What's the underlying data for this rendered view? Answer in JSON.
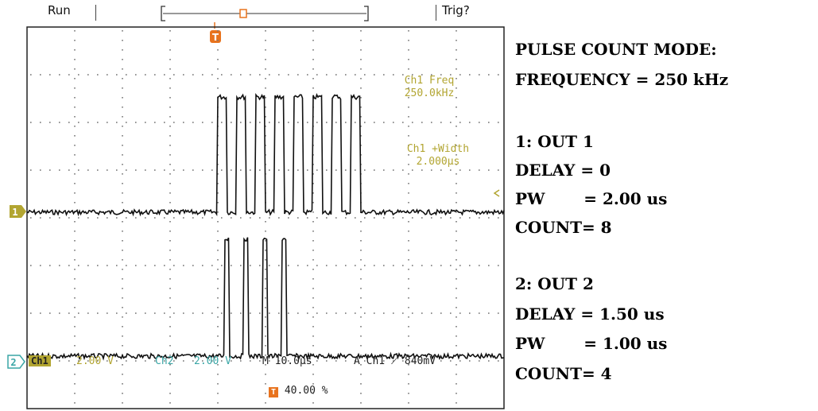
{
  "scope": {
    "status_label": "Run",
    "trigger_label": "Trig?",
    "trigger_marker": "T",
    "ch1_marker": "1",
    "ch2_marker": "2",
    "measurements": [
      {
        "label": "Ch1 Freq",
        "value": "250.0kHz"
      },
      {
        "label": "Ch1 +Width",
        "value": "2.000µs"
      }
    ],
    "bottom_readout": {
      "ch1_tag": "Ch1",
      "ch1_scale": "2.00 V",
      "ch2_tag": "Ch2",
      "ch2_scale": "2.00 V",
      "timebase": "M 10.0µs",
      "trigger": "A  Ch1  ⟋  840mV",
      "trigger_position": "40.00 %"
    },
    "colors": {
      "ch1": "#b2a531",
      "ch2": "#3aa6a6",
      "trigger": "#e8731e"
    }
  },
  "waveforms": {
    "ch1": {
      "pulse_count": 8,
      "pulse_width_us": 2.0,
      "period_us": 4.0,
      "delay_us": 0
    },
    "ch2": {
      "pulse_count": 4,
      "pulse_width_us": 1.0,
      "period_us": 4.0,
      "delay_us": 1.5
    },
    "time_per_div_us": 10
  },
  "panel": {
    "lines": [
      "PULSE COUNT MODE:",
      "FREQUENCY = 250 kHz",
      "",
      "1: OUT 1",
      "DELAY = 0",
      "PW       = 2.00 us",
      "COUNT= 8",
      "",
      "2: OUT 2",
      "DELAY = 1.50 us",
      "PW       = 1.00 us",
      "COUNT= 4"
    ]
  }
}
